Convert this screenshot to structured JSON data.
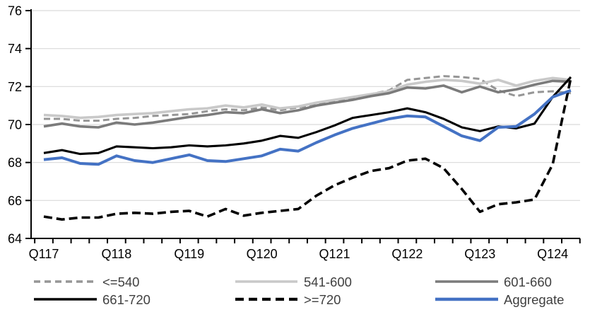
{
  "chart_data": {
    "type": "line",
    "title": "",
    "categories": [
      "Q117",
      "Q217",
      "Q317",
      "Q417",
      "Q118",
      "Q218",
      "Q318",
      "Q418",
      "Q119",
      "Q219",
      "Q319",
      "Q419",
      "Q120",
      "Q220",
      "Q320",
      "Q420",
      "Q121",
      "Q221",
      "Q321",
      "Q421",
      "Q122",
      "Q222",
      "Q322",
      "Q422",
      "Q123",
      "Q223",
      "Q323",
      "Q423",
      "Q124",
      "Q224"
    ],
    "x_axis_labels": [
      "Q117",
      "Q118",
      "Q119",
      "Q120",
      "Q121",
      "Q122",
      "Q123",
      "Q124"
    ],
    "ylim": [
      64,
      76
    ],
    "yticks": [
      64,
      66,
      68,
      70,
      72,
      74,
      76
    ],
    "grid": "horizontal",
    "legend_position": "bottom-two-rows",
    "series": [
      {
        "name": "<=540",
        "color": "#969696",
        "style": "dashed",
        "values": [
          70.3,
          70.3,
          70.2,
          70.2,
          70.3,
          70.35,
          70.45,
          70.5,
          70.55,
          70.7,
          70.8,
          70.75,
          70.9,
          70.75,
          70.9,
          71.05,
          71.25,
          71.4,
          71.6,
          71.8,
          72.35,
          72.45,
          72.55,
          72.5,
          72.4,
          71.8,
          71.5,
          71.7,
          71.75,
          71.65
        ]
      },
      {
        "name": "541-600",
        "color": "#c9c9c9",
        "style": "solid",
        "values": [
          70.5,
          70.45,
          70.35,
          70.4,
          70.5,
          70.55,
          70.6,
          70.7,
          70.8,
          70.85,
          71.0,
          70.9,
          71.05,
          70.85,
          70.95,
          71.15,
          71.3,
          71.45,
          71.6,
          71.75,
          72.1,
          72.25,
          72.35,
          72.3,
          72.15,
          72.35,
          72.05,
          72.3,
          72.45,
          72.35
        ]
      },
      {
        "name": "601-660",
        "color": "#7b7b7b",
        "style": "solid",
        "values": [
          69.9,
          70.05,
          69.9,
          69.85,
          70.1,
          70.0,
          70.1,
          70.25,
          70.4,
          70.5,
          70.65,
          70.6,
          70.8,
          70.6,
          70.75,
          71.0,
          71.15,
          71.3,
          71.5,
          71.65,
          71.95,
          71.9,
          72.05,
          71.7,
          72.0,
          71.7,
          71.85,
          72.1,
          72.3,
          72.25
        ]
      },
      {
        "name": "661-720",
        "color": "#000000",
        "style": "solid",
        "values": [
          68.5,
          68.65,
          68.45,
          68.5,
          68.85,
          68.8,
          68.75,
          68.8,
          68.9,
          68.85,
          68.9,
          69.0,
          69.15,
          69.4,
          69.3,
          69.6,
          69.95,
          70.35,
          70.5,
          70.65,
          70.85,
          70.65,
          70.3,
          69.85,
          69.65,
          69.9,
          69.8,
          70.05,
          71.45,
          72.5
        ]
      },
      {
        "name": ">=720",
        "color": "#000000",
        "style": "dashed",
        "values": [
          65.15,
          65.0,
          65.1,
          65.1,
          65.3,
          65.35,
          65.3,
          65.4,
          65.45,
          65.15,
          65.55,
          65.2,
          65.35,
          65.45,
          65.55,
          66.25,
          66.8,
          67.2,
          67.55,
          67.7,
          68.1,
          68.2,
          67.7,
          66.6,
          65.4,
          65.8,
          65.9,
          66.05,
          67.9,
          72.45
        ]
      },
      {
        "name": "Aggregate",
        "color": "#4472c4",
        "style": "solid",
        "values": [
          68.15,
          68.25,
          67.95,
          67.9,
          68.35,
          68.1,
          68.0,
          68.2,
          68.4,
          68.1,
          68.05,
          68.2,
          68.35,
          68.7,
          68.6,
          69.05,
          69.45,
          69.8,
          70.05,
          70.3,
          70.45,
          70.4,
          69.9,
          69.4,
          69.15,
          69.85,
          69.9,
          70.55,
          71.45,
          71.8
        ]
      }
    ]
  },
  "colors": {
    "gridline": "#d9d9d9",
    "axis": "#000000",
    "tick_label": "#000000",
    "legend_text": "#404040"
  }
}
